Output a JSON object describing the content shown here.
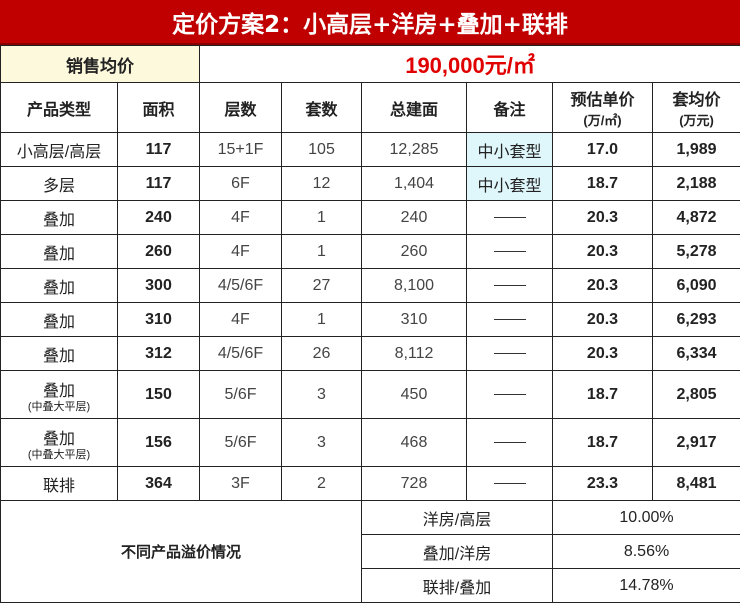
{
  "title": "定价方案2：小高层+洋房+叠加+联排",
  "avg_price": {
    "label": "销售均价",
    "value": "190,000元/㎡"
  },
  "headers": [
    "产品类型",
    "面积",
    "层数",
    "套数",
    "总建面",
    "备注",
    "预估单价",
    "套均价"
  ],
  "header_units": {
    "unit_price": "(万/㎡)",
    "avg_total": "(万元)"
  },
  "rows": [
    {
      "type": "小高层/高层",
      "sub": "",
      "area": "117",
      "floors": "15+1F",
      "units": "105",
      "total": "12,285",
      "note": "中小套型",
      "unit_price": "17.0",
      "avg": "1,989"
    },
    {
      "type": "多层",
      "sub": "",
      "area": "117",
      "floors": "6F",
      "units": "12",
      "total": "1,404",
      "note": "中小套型",
      "unit_price": "18.7",
      "avg": "2,188"
    },
    {
      "type": "叠加",
      "sub": "",
      "area": "240",
      "floors": "4F",
      "units": "1",
      "total": "240",
      "note": "——",
      "unit_price": "20.3",
      "avg": "4,872"
    },
    {
      "type": "叠加",
      "sub": "",
      "area": "260",
      "floors": "4F",
      "units": "1",
      "total": "260",
      "note": "——",
      "unit_price": "20.3",
      "avg": "5,278"
    },
    {
      "type": "叠加",
      "sub": "",
      "area": "300",
      "floors": "4/5/6F",
      "units": "27",
      "total": "8,100",
      "note": "——",
      "unit_price": "20.3",
      "avg": "6,090"
    },
    {
      "type": "叠加",
      "sub": "",
      "area": "310",
      "floors": "4F",
      "units": "1",
      "total": "310",
      "note": "——",
      "unit_price": "20.3",
      "avg": "6,293"
    },
    {
      "type": "叠加",
      "sub": "",
      "area": "312",
      "floors": "4/5/6F",
      "units": "26",
      "total": "8,112",
      "note": "——",
      "unit_price": "20.3",
      "avg": "6,334"
    },
    {
      "type": "叠加",
      "sub": "(中叠大平层)",
      "area": "150",
      "floors": "5/6F",
      "units": "3",
      "total": "450",
      "note": "——",
      "unit_price": "18.7",
      "avg": "2,805"
    },
    {
      "type": "叠加",
      "sub": "(中叠大平层)",
      "area": "156",
      "floors": "5/6F",
      "units": "3",
      "total": "468",
      "note": "——",
      "unit_price": "18.7",
      "avg": "2,917"
    },
    {
      "type": "联排",
      "sub": "",
      "area": "364",
      "floors": "3F",
      "units": "2",
      "total": "728",
      "note": "——",
      "unit_price": "23.3",
      "avg": "8,481"
    }
  ],
  "premium": {
    "label": "不同产品溢价情况",
    "items": [
      {
        "name": "洋房/高层",
        "value": "10.00%"
      },
      {
        "name": "叠加/洋房",
        "value": "8.56%"
      },
      {
        "name": "联排/叠加",
        "value": "14.78%"
      }
    ]
  },
  "colors": {
    "title_bg": "#c00000",
    "price_text": "#e00000",
    "price_label_bg": "#fdf9dc",
    "note_bg": "#dff7fb"
  }
}
